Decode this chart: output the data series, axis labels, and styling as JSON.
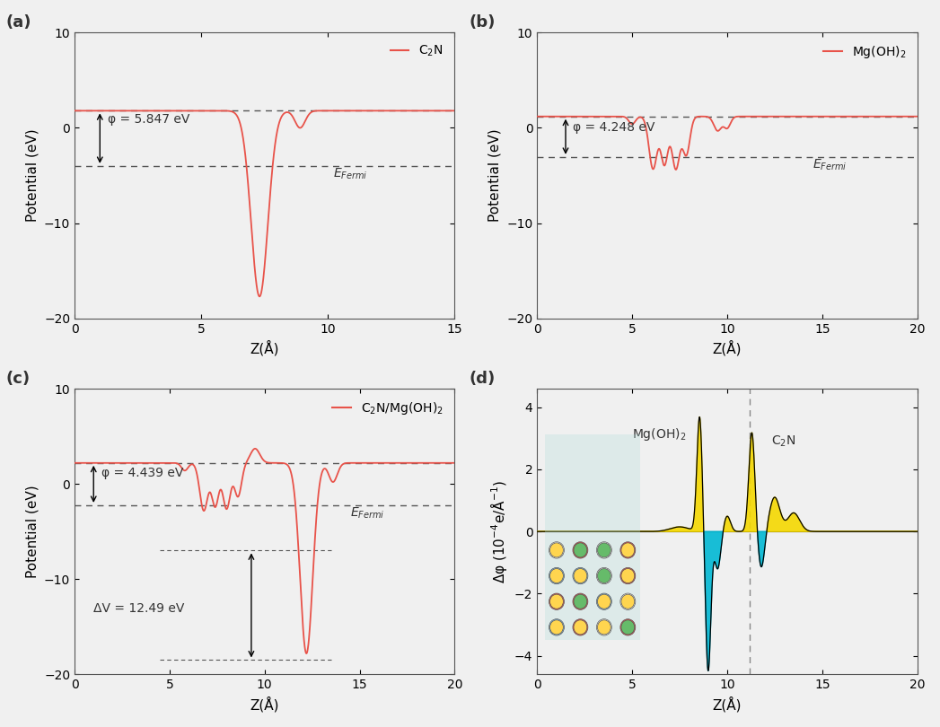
{
  "fig_width": 10.47,
  "fig_height": 8.1,
  "line_color": "#e8534a",
  "fermi_color": "#555555",
  "bg_color": "#f0f0f0",
  "panel_a": {
    "label": "(a)",
    "legend": "C$_2$N",
    "xlim": [
      0,
      15
    ],
    "ylim": [
      -20,
      10
    ],
    "xlabel": "Z(Å)",
    "ylabel": "Potential (eV)",
    "vacuum_level": 1.8,
    "fermi_level": -4.0,
    "phi_text": "φ = 5.847 eV",
    "xticks": [
      0,
      5,
      10,
      15
    ],
    "yticks": [
      -20,
      -10,
      0,
      10
    ]
  },
  "panel_b": {
    "label": "(b)",
    "legend": "Mg(OH)$_2$",
    "xlim": [
      0,
      20
    ],
    "ylim": [
      -20,
      10
    ],
    "xlabel": "Z(Å)",
    "ylabel": "Potential (eV)",
    "vacuum_level": 1.2,
    "fermi_level": -3.05,
    "phi_text": "φ = 4.248 eV",
    "xticks": [
      0,
      5,
      10,
      15,
      20
    ],
    "yticks": [
      -20,
      -10,
      0,
      10
    ]
  },
  "panel_c": {
    "label": "(c)",
    "legend": "C$_2$N/Mg(OH)$_2$",
    "xlim": [
      0,
      20
    ],
    "ylim": [
      -20,
      10
    ],
    "xlabel": "Z(Å)",
    "ylabel": "Potential (eV)",
    "vacuum_level": 2.2,
    "fermi_level": -2.24,
    "phi_text": "φ = 4.439 eV",
    "dv_text": "ΔV = 12.49 eV",
    "local_min": -7.0,
    "deep_min": -18.5,
    "xticks": [
      0,
      5,
      10,
      15,
      20
    ],
    "yticks": [
      -20,
      -10,
      0,
      10
    ]
  },
  "panel_d": {
    "label": "(d)",
    "xlim": [
      0,
      20
    ],
    "ylim": [
      -4.6,
      4.6
    ],
    "xlabel": "Z(Å)",
    "ylabel": "Δφ (10$^{-4}$e/Å$^{-1}$)",
    "vline_x": 11.2,
    "label_MgOH2": "Mg(OH)$_2$",
    "label_C2N": "C$_2$N",
    "xticks": [
      0,
      5,
      10,
      15,
      20
    ],
    "yticks": [
      -4,
      -2,
      0,
      2,
      4
    ]
  }
}
